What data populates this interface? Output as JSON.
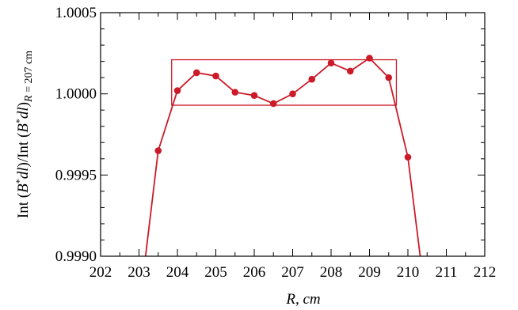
{
  "chart_data": {
    "type": "line",
    "xlabel": "R, cm",
    "ylabel": "Int (B*dl)/Int (B*dl) R = 207 cm",
    "ylabel_parts": {
      "pre": "Int (",
      "b1": "B",
      "star1": "*",
      "dl1": "dl",
      "mid": ")/Int (",
      "b2": "B",
      "star2": "*",
      "dl2": "dl",
      "close": ")",
      "sub_r": "R",
      "sub_rest": " = 207 cm"
    },
    "xlim": [
      202,
      212
    ],
    "ylim": [
      0.999,
      1.0005
    ],
    "xticks": [
      202,
      203,
      204,
      205,
      206,
      207,
      208,
      209,
      210,
      211,
      212
    ],
    "yticks": [
      {
        "value": 0.999,
        "label": "0.9990"
      },
      {
        "value": 0.9995,
        "label": "0.9995"
      },
      {
        "value": 1.0,
        "label": "1.0000"
      },
      {
        "value": 1.0005,
        "label": "1.0005"
      }
    ],
    "grid": false,
    "color": "#cc1a28",
    "series": [
      {
        "points": [
          {
            "x": 203.5,
            "y": 0.99965
          },
          {
            "x": 204.0,
            "y": 1.00002
          },
          {
            "x": 204.5,
            "y": 1.00013
          },
          {
            "x": 205.0,
            "y": 1.00011
          },
          {
            "x": 205.5,
            "y": 1.00001
          },
          {
            "x": 206.0,
            "y": 0.99999
          },
          {
            "x": 206.5,
            "y": 0.99994
          },
          {
            "x": 207.0,
            "y": 1.0
          },
          {
            "x": 207.5,
            "y": 1.00009
          },
          {
            "x": 208.0,
            "y": 1.00019
          },
          {
            "x": 208.5,
            "y": 1.00014
          },
          {
            "x": 209.0,
            "y": 1.00022
          },
          {
            "x": 209.5,
            "y": 1.0001
          },
          {
            "x": 210.0,
            "y": 0.99961
          }
        ],
        "line_extends_to": [
          {
            "x": 203.17,
            "y": 0.999
          },
          {
            "x": 210.32,
            "y": 0.999
          }
        ]
      }
    ],
    "annotations": [
      {
        "type": "rectangle",
        "x0": 203.85,
        "x1": 209.7,
        "y0": 0.99993,
        "y1": 1.00021
      }
    ]
  }
}
